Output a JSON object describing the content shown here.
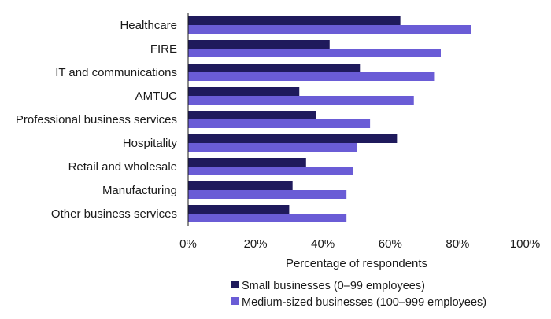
{
  "chart_data": {
    "type": "bar",
    "orientation": "horizontal",
    "title": "",
    "xlabel": "Percentage of respondents",
    "ylabel": "",
    "xlim": [
      0,
      100
    ],
    "x_ticks": [
      "0%",
      "20%",
      "40%",
      "60%",
      "80%",
      "100%"
    ],
    "grid": false,
    "legend_position": "bottom",
    "categories": [
      "Healthcare",
      "FIRE",
      "IT and communications",
      "AMTUC",
      "Professional business services",
      "Hospitality",
      "Retail and wholesale",
      "Manufacturing",
      "Other business services"
    ],
    "series": [
      {
        "name": "Small businesses (0–99 employees)",
        "color": "#1f1a5c",
        "values": [
          63,
          42,
          51,
          33,
          38,
          62,
          35,
          31,
          30
        ]
      },
      {
        "name": "Medium-sized businesses (100–999 employees)",
        "color": "#6a5cd6",
        "values": [
          84,
          75,
          73,
          67,
          54,
          50,
          49,
          47,
          47
        ]
      }
    ]
  }
}
